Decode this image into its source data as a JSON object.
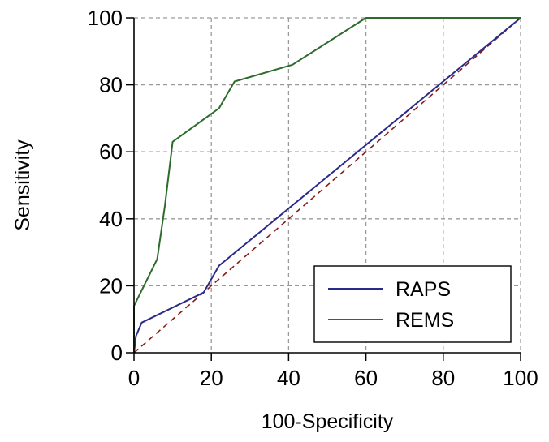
{
  "chart_data": {
    "type": "line",
    "title": "",
    "xlabel": "100-Specificity",
    "ylabel": "Sensitivity",
    "xlim": [
      0,
      100
    ],
    "ylim": [
      0,
      100
    ],
    "x_ticks": [
      "0",
      "20",
      "40",
      "60",
      "80",
      "100"
    ],
    "y_ticks": [
      "0",
      "20",
      "40",
      "60",
      "80",
      "100"
    ],
    "grid": true,
    "legend_position": "bottom-right",
    "reference_line": {
      "style": "dashed",
      "color": "#8b1a1a",
      "from": [
        0,
        0
      ],
      "to": [
        100,
        100
      ]
    },
    "series": [
      {
        "name": "RAPS",
        "color": "#2a2a8a",
        "points": [
          [
            0,
            0
          ],
          [
            0.5,
            5
          ],
          [
            2,
            9
          ],
          [
            18,
            18
          ],
          [
            22,
            26
          ],
          [
            100,
            100
          ]
        ]
      },
      {
        "name": "REMS",
        "color": "#2d6b2d",
        "points": [
          [
            0,
            0
          ],
          [
            0,
            14
          ],
          [
            3,
            21
          ],
          [
            6,
            28
          ],
          [
            8,
            44
          ],
          [
            10,
            63
          ],
          [
            22,
            73
          ],
          [
            26,
            81
          ],
          [
            41,
            86
          ],
          [
            60,
            100
          ],
          [
            100,
            100
          ]
        ]
      }
    ]
  }
}
